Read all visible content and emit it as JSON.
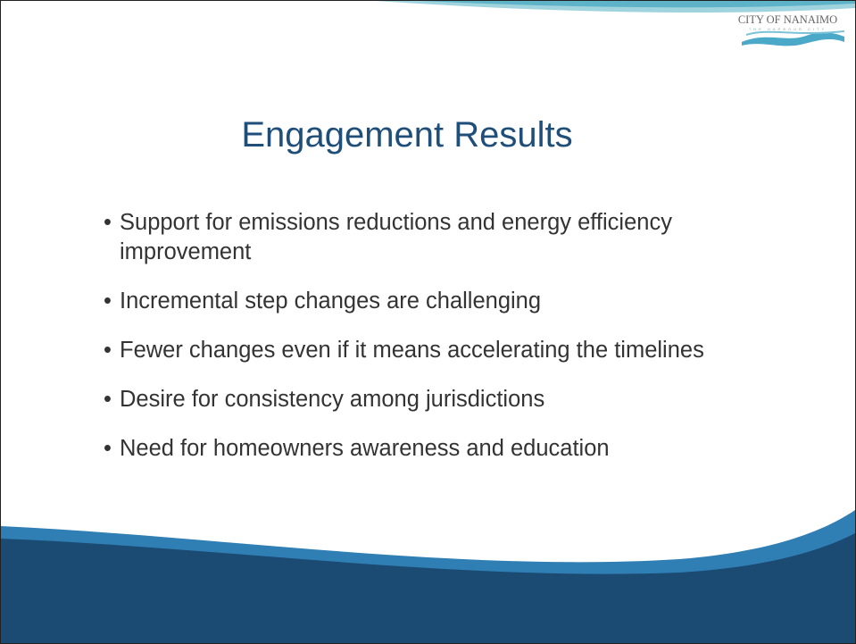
{
  "logo": {
    "name": "CITY OF NANAIMO",
    "tagline": "THE HARBOUR CITY"
  },
  "title": "Engagement Results",
  "bullets": [
    "Support for emissions reductions and energy efficiency improvement",
    "Incremental step changes are challenging",
    "Fewer changes even if it means accelerating the timelines",
    "Desire for consistency among jurisdictions",
    "Need for homeowners awareness and education"
  ]
}
